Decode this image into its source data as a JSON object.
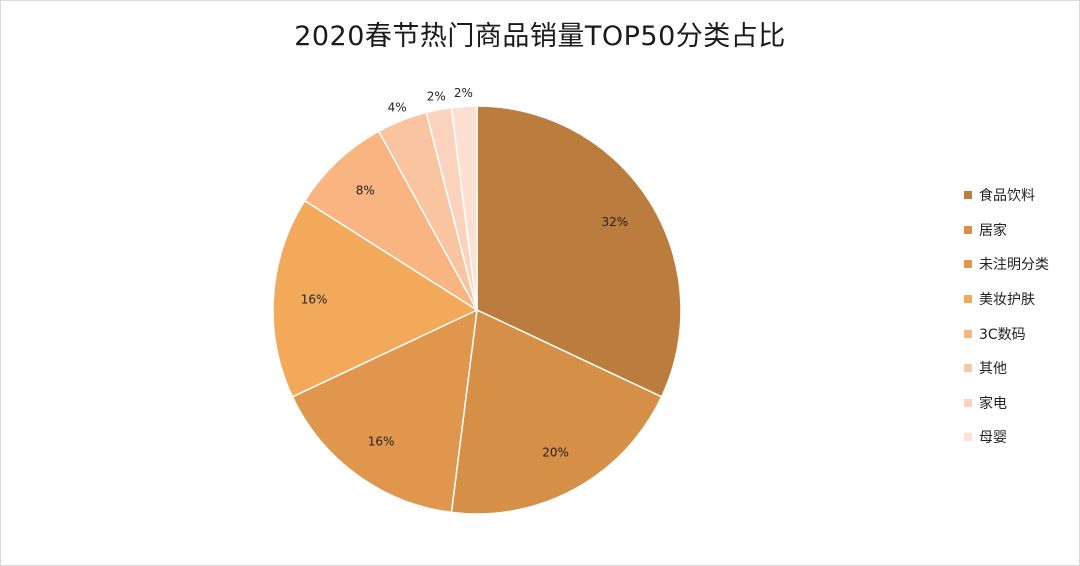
{
  "chart_data": {
    "type": "pie",
    "title": "2020春节热门商品销量TOP50分类占比",
    "legend_position": "right",
    "slices": [
      {
        "label": "食品饮料",
        "value": 32,
        "display": "32%",
        "color": "#BB7D3E"
      },
      {
        "label": "居家",
        "value": 20,
        "display": "20%",
        "color": "#D58F47"
      },
      {
        "label": "未注明分类",
        "value": 16,
        "display": "16%",
        "color": "#E0964D"
      },
      {
        "label": "美妆护肤",
        "value": 16,
        "display": "16%",
        "color": "#F2A95A"
      },
      {
        "label": "3C数码",
        "value": 8,
        "display": "8%",
        "color": "#F8B481"
      },
      {
        "label": "其他",
        "value": 4,
        "display": "4%",
        "color": "#F9C4A0"
      },
      {
        "label": "家电",
        "value": 2,
        "display": "2%",
        "color": "#FBD3BD"
      },
      {
        "label": "母婴",
        "value": 2,
        "display": "2%",
        "color": "#FCE0D2"
      }
    ]
  }
}
